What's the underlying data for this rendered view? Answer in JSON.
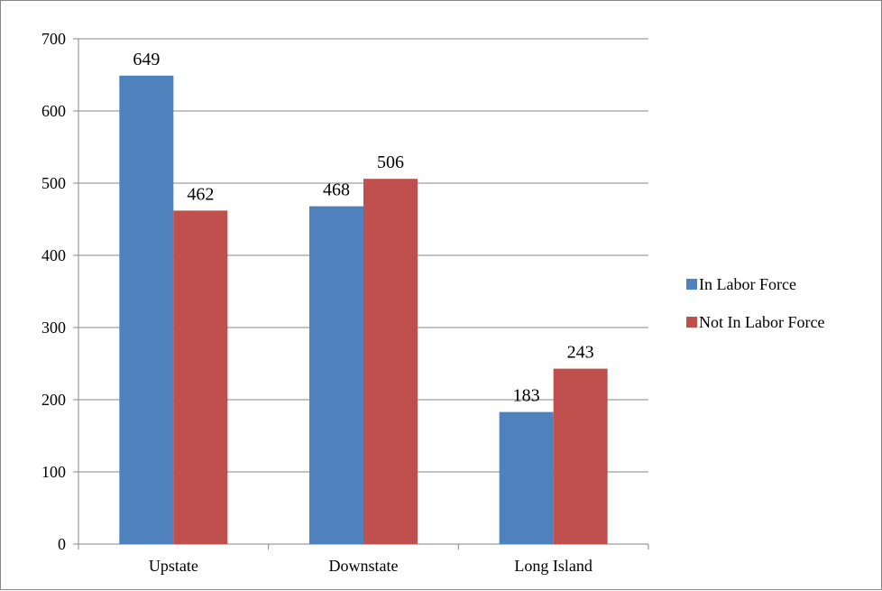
{
  "chart_data": {
    "type": "bar",
    "title": "",
    "xlabel": "",
    "ylabel": "",
    "categories": [
      "Upstate",
      "Downstate",
      "Long Island"
    ],
    "series": [
      {
        "name": "In Labor Force",
        "color": "#4F81BD",
        "values": [
          649,
          468,
          183
        ]
      },
      {
        "name": "Not In Labor Force",
        "color": "#C0504D",
        "values": [
          462,
          506,
          243
        ]
      }
    ],
    "ylim": [
      0,
      700
    ],
    "yticks": [
      0,
      100,
      200,
      300,
      400,
      500,
      600,
      700
    ],
    "grid": true,
    "legend": "right",
    "data_labels": true
  }
}
